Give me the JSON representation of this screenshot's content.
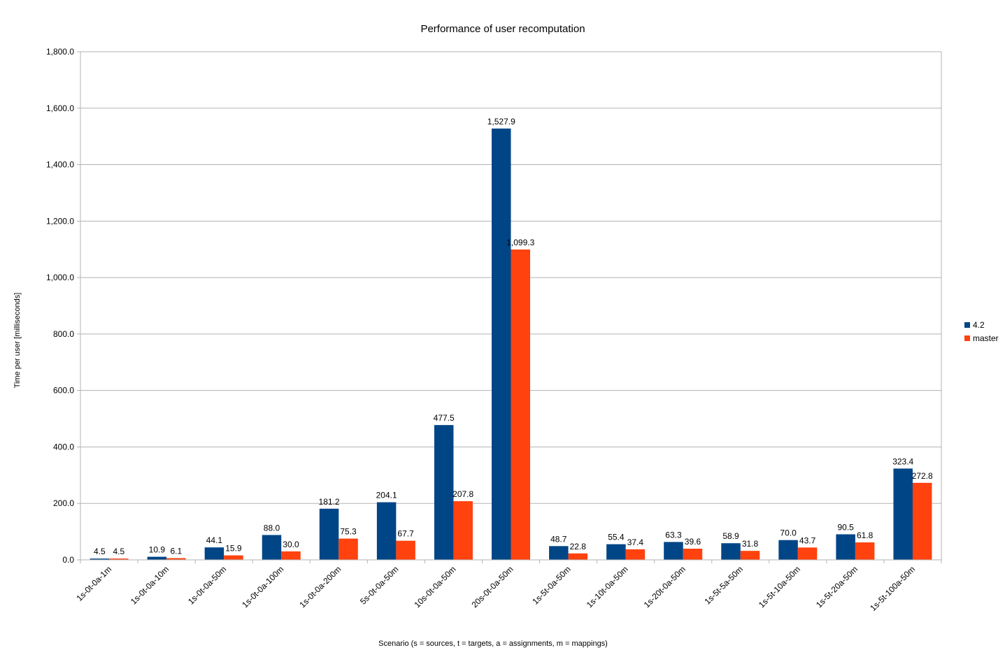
{
  "chart_data": {
    "type": "bar",
    "title": "Performance of user recomputation",
    "xlabel": "Scenario (s = sources, t = targets, a = assignments, m = mappings)",
    "ylabel": "Time per user [milliseconds]",
    "ylim": [
      0,
      1800
    ],
    "yticks": [
      "0.0",
      "200.0",
      "400.0",
      "600.0",
      "800.0",
      "1,000.0",
      "1,200.0",
      "1,400.0",
      "1,600.0",
      "1,800.0"
    ],
    "grid": true,
    "legend_position": "right",
    "categories": [
      "1s-0t-0a-1m",
      "1s-0t-0a-10m",
      "1s-0t-0a-50m",
      "1s-0t-0a-100m",
      "1s-0t-0a-200m",
      "5s-0t-0a-50m",
      "10s-0t-0a-50m",
      "20s-0t-0a-50m",
      "1s-5t-0a-50m",
      "1s-10t-0a-50m",
      "1s-20t-0a-50m",
      "1s-5t-5a-50m",
      "1s-5t-10a-50m",
      "1s-5t-20a-50m",
      "1s-5t-100a-50m"
    ],
    "series": [
      {
        "name": "4.2",
        "color": "#004586",
        "values": [
          4.5,
          10.9,
          44.1,
          88.0,
          181.2,
          204.1,
          477.5,
          1527.9,
          48.7,
          55.4,
          63.3,
          58.9,
          70.0,
          90.5,
          323.4
        ],
        "labels": [
          "4.5",
          "10.9",
          "44.1",
          "88.0",
          "181.2",
          "204.1",
          "477.5",
          "1,527.9",
          "48.7",
          "55.4",
          "63.3",
          "58.9",
          "70.0",
          "90.5",
          "323.4"
        ]
      },
      {
        "name": "master",
        "color": "#ff420e",
        "values": [
          4.5,
          6.1,
          15.9,
          30.0,
          75.3,
          67.7,
          207.8,
          1099.3,
          22.8,
          37.4,
          39.6,
          31.8,
          43.7,
          61.8,
          272.8
        ],
        "labels": [
          "4.5",
          "6.1",
          "15.9",
          "30.0",
          "75.3",
          "67.7",
          "207.8",
          "1,099.3",
          "22.8",
          "37.4",
          "39.6",
          "31.8",
          "43.7",
          "61.8",
          "272.8"
        ]
      }
    ]
  }
}
